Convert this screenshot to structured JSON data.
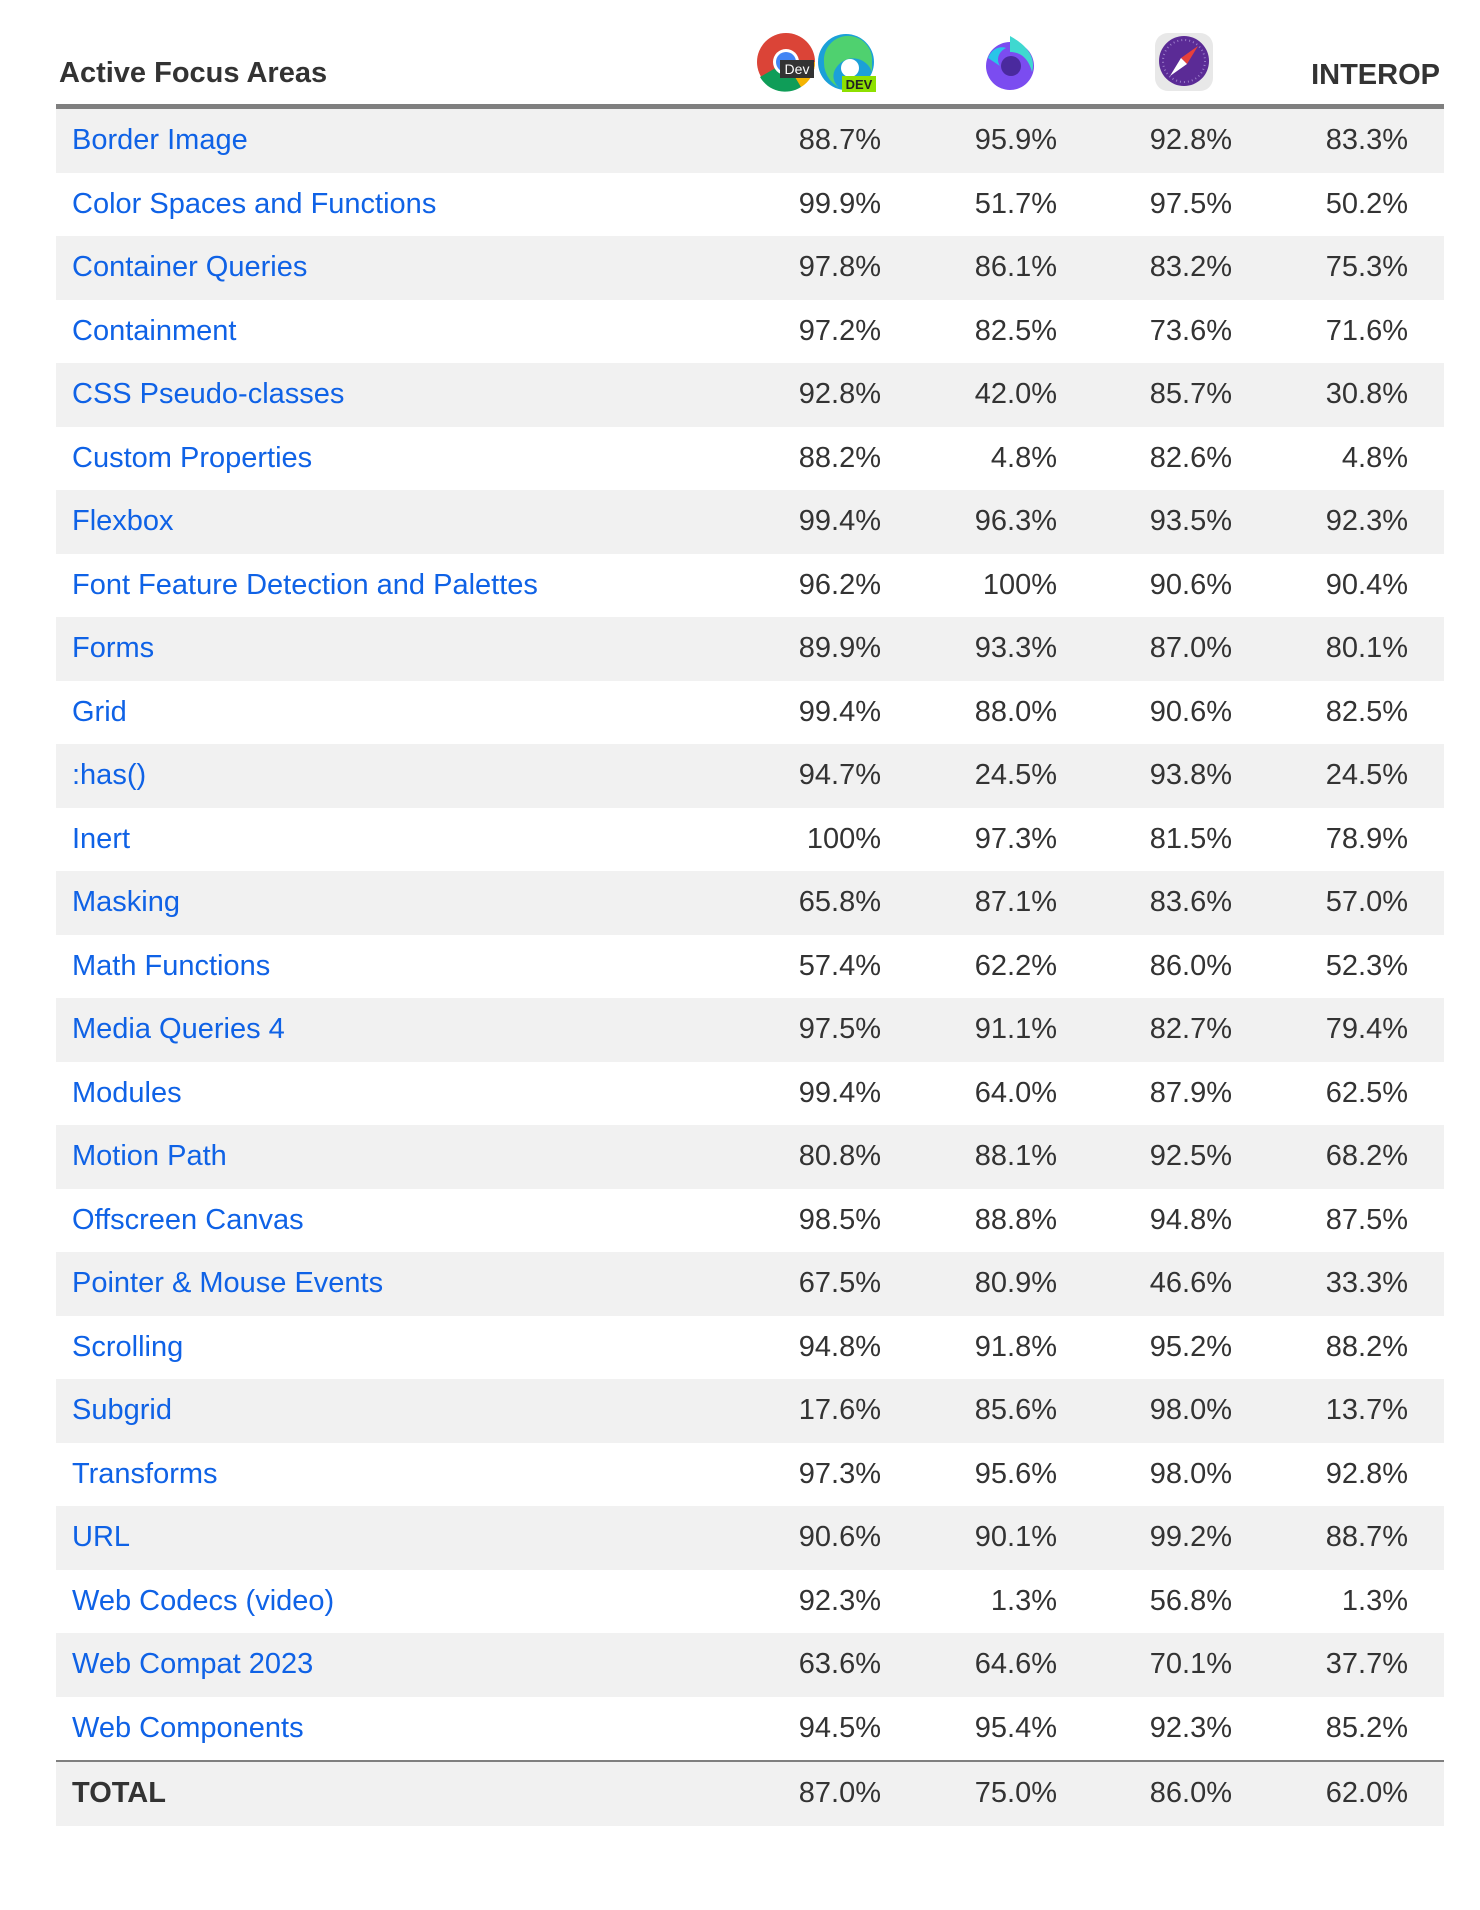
{
  "header": {
    "title": "Active Focus Areas",
    "interop": "INTEROP",
    "browsers": [
      {
        "icon": "chrome-dev-edge-dev-icon",
        "badge_chrome": "Dev",
        "badge_edge": "DEV"
      },
      {
        "icon": "firefox-nightly-icon"
      },
      {
        "icon": "safari-technology-preview-icon"
      }
    ]
  },
  "rows": [
    {
      "name": "Border Image",
      "v": [
        "88.7%",
        "95.9%",
        "92.8%",
        "83.3%"
      ]
    },
    {
      "name": "Color Spaces and Functions",
      "v": [
        "99.9%",
        "51.7%",
        "97.5%",
        "50.2%"
      ]
    },
    {
      "name": "Container Queries",
      "v": [
        "97.8%",
        "86.1%",
        "83.2%",
        "75.3%"
      ]
    },
    {
      "name": "Containment",
      "v": [
        "97.2%",
        "82.5%",
        "73.6%",
        "71.6%"
      ]
    },
    {
      "name": "CSS Pseudo-classes",
      "v": [
        "92.8%",
        "42.0%",
        "85.7%",
        "30.8%"
      ]
    },
    {
      "name": "Custom Properties",
      "v": [
        "88.2%",
        "4.8%",
        "82.6%",
        "4.8%"
      ]
    },
    {
      "name": "Flexbox",
      "v": [
        "99.4%",
        "96.3%",
        "93.5%",
        "92.3%"
      ]
    },
    {
      "name": "Font Feature Detection and Palettes",
      "v": [
        "96.2%",
        "100%",
        "90.6%",
        "90.4%"
      ]
    },
    {
      "name": "Forms",
      "v": [
        "89.9%",
        "93.3%",
        "87.0%",
        "80.1%"
      ]
    },
    {
      "name": "Grid",
      "v": [
        "99.4%",
        "88.0%",
        "90.6%",
        "82.5%"
      ]
    },
    {
      "name": ":has()",
      "v": [
        "94.7%",
        "24.5%",
        "93.8%",
        "24.5%"
      ]
    },
    {
      "name": "Inert",
      "v": [
        "100%",
        "97.3%",
        "81.5%",
        "78.9%"
      ]
    },
    {
      "name": "Masking",
      "v": [
        "65.8%",
        "87.1%",
        "83.6%",
        "57.0%"
      ]
    },
    {
      "name": "Math Functions",
      "v": [
        "57.4%",
        "62.2%",
        "86.0%",
        "52.3%"
      ]
    },
    {
      "name": "Media Queries 4",
      "v": [
        "97.5%",
        "91.1%",
        "82.7%",
        "79.4%"
      ]
    },
    {
      "name": "Modules",
      "v": [
        "99.4%",
        "64.0%",
        "87.9%",
        "62.5%"
      ]
    },
    {
      "name": "Motion Path",
      "v": [
        "80.8%",
        "88.1%",
        "92.5%",
        "68.2%"
      ]
    },
    {
      "name": "Offscreen Canvas",
      "v": [
        "98.5%",
        "88.8%",
        "94.8%",
        "87.5%"
      ]
    },
    {
      "name": "Pointer & Mouse Events",
      "v": [
        "67.5%",
        "80.9%",
        "46.6%",
        "33.3%"
      ]
    },
    {
      "name": "Scrolling",
      "v": [
        "94.8%",
        "91.8%",
        "95.2%",
        "88.2%"
      ]
    },
    {
      "name": "Subgrid",
      "v": [
        "17.6%",
        "85.6%",
        "98.0%",
        "13.7%"
      ]
    },
    {
      "name": "Transforms",
      "v": [
        "97.3%",
        "95.6%",
        "98.0%",
        "92.8%"
      ]
    },
    {
      "name": "URL",
      "v": [
        "90.6%",
        "90.1%",
        "99.2%",
        "88.7%"
      ]
    },
    {
      "name": "Web Codecs (video)",
      "v": [
        "92.3%",
        "1.3%",
        "56.8%",
        "1.3%"
      ]
    },
    {
      "name": "Web Compat 2023",
      "v": [
        "63.6%",
        "64.6%",
        "70.1%",
        "37.7%"
      ]
    },
    {
      "name": "Web Components",
      "v": [
        "94.5%",
        "95.4%",
        "92.3%",
        "85.2%"
      ]
    }
  ],
  "total": {
    "name": "TOTAL",
    "v": [
      "87.0%",
      "75.0%",
      "86.0%",
      "62.0%"
    ]
  },
  "colors": {
    "link": "#0f62e6",
    "stripe": "#f1f1f1",
    "rule": "#7f7f7f"
  }
}
